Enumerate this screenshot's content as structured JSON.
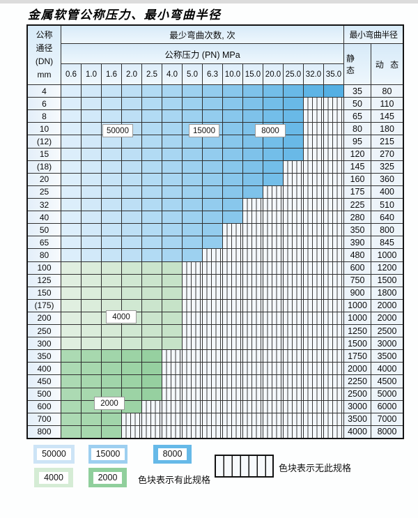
{
  "title": "金属软管公称压力、最小弯曲半径",
  "table": {
    "header": {
      "dn_lines": [
        "公称",
        "通径",
        "(DN)",
        "mm"
      ],
      "cycles_label": "最少弯曲次数, 次",
      "pressure_label": "公称压力 (PN) MPa",
      "radius_label": "最小弯曲半径",
      "static_label": "静 态",
      "dynamic_label": "动 态",
      "pressures": [
        "0.6",
        "1.0",
        "1.6",
        "2.0",
        "2.5",
        "4.0",
        "5.0",
        "6.3",
        "10.0",
        "15.0",
        "20.0",
        "25.0",
        "32.0",
        "35.0"
      ]
    },
    "rows": [
      {
        "dn": "4",
        "zone": "blue",
        "colored": 14,
        "colored_through_pn": "35.0",
        "static": "35",
        "dynamic": "80"
      },
      {
        "dn": "6",
        "zone": "blue",
        "colored": 12,
        "colored_through_pn": "25.0",
        "static": "50",
        "dynamic": "110"
      },
      {
        "dn": "8",
        "zone": "blue",
        "colored": 12,
        "colored_through_pn": "25.0",
        "static": "65",
        "dynamic": "145"
      },
      {
        "dn": "10",
        "zone": "blue",
        "colored": 12,
        "colored_through_pn": "25.0",
        "static": "80",
        "dynamic": "180"
      },
      {
        "dn": "(12)",
        "zone": "blue",
        "colored": 12,
        "colored_through_pn": "25.0",
        "static": "95",
        "dynamic": "215"
      },
      {
        "dn": "15",
        "zone": "blue",
        "colored": 12,
        "colored_through_pn": "25.0",
        "static": "120",
        "dynamic": "270"
      },
      {
        "dn": "(18)",
        "zone": "blue",
        "colored": 11,
        "colored_through_pn": "20.0",
        "static": "145",
        "dynamic": "325"
      },
      {
        "dn": "20",
        "zone": "blue",
        "colored": 11,
        "colored_through_pn": "20.0",
        "static": "160",
        "dynamic": "360"
      },
      {
        "dn": "25",
        "zone": "blue",
        "colored": 10,
        "colored_through_pn": "15.0",
        "static": "175",
        "dynamic": "400"
      },
      {
        "dn": "32",
        "zone": "blue",
        "colored": 9,
        "colored_through_pn": "10.0",
        "static": "225",
        "dynamic": "510"
      },
      {
        "dn": "40",
        "zone": "blue",
        "colored": 9,
        "colored_through_pn": "10.0",
        "static": "280",
        "dynamic": "640"
      },
      {
        "dn": "50",
        "zone": "blue",
        "colored": 8,
        "colored_through_pn": "6.3",
        "static": "350",
        "dynamic": "800"
      },
      {
        "dn": "65",
        "zone": "blue",
        "colored": 8,
        "colored_through_pn": "6.3",
        "static": "390",
        "dynamic": "845"
      },
      {
        "dn": "80",
        "zone": "blue",
        "colored": 7,
        "colored_through_pn": "5.0",
        "static": "480",
        "dynamic": "1000"
      },
      {
        "dn": "100",
        "zone": "green-4000",
        "colored": 6,
        "colored_through_pn": "4.0",
        "static": "600",
        "dynamic": "1200"
      },
      {
        "dn": "125",
        "zone": "green-4000",
        "colored": 6,
        "colored_through_pn": "4.0",
        "static": "750",
        "dynamic": "1500"
      },
      {
        "dn": "150",
        "zone": "green-4000",
        "colored": 6,
        "colored_through_pn": "4.0",
        "static": "900",
        "dynamic": "1800"
      },
      {
        "dn": "(175)",
        "zone": "green-4000",
        "colored": 6,
        "colored_through_pn": "4.0",
        "static": "1000",
        "dynamic": "2000"
      },
      {
        "dn": "200",
        "zone": "green-4000",
        "colored": 6,
        "colored_through_pn": "4.0",
        "static": "1000",
        "dynamic": "2000"
      },
      {
        "dn": "250",
        "zone": "green-4000",
        "colored": 6,
        "colored_through_pn": "4.0",
        "static": "1250",
        "dynamic": "2500"
      },
      {
        "dn": "300",
        "zone": "green-4000",
        "colored": 6,
        "colored_through_pn": "4.0",
        "static": "1500",
        "dynamic": "3000"
      },
      {
        "dn": "350",
        "zone": "green-2000",
        "colored": 5,
        "colored_through_pn": "2.5",
        "static": "1750",
        "dynamic": "3500"
      },
      {
        "dn": "400",
        "zone": "green-2000",
        "colored": 5,
        "colored_through_pn": "2.5",
        "static": "2000",
        "dynamic": "4000"
      },
      {
        "dn": "450",
        "zone": "green-2000",
        "colored": 5,
        "colored_through_pn": "2.5",
        "static": "2250",
        "dynamic": "4500"
      },
      {
        "dn": "500",
        "zone": "green-2000",
        "colored": 5,
        "colored_through_pn": "2.5",
        "static": "2500",
        "dynamic": "5000"
      },
      {
        "dn": "600",
        "zone": "green-2000",
        "colored": 4,
        "colored_through_pn": "2.0",
        "static": "3000",
        "dynamic": "6000"
      },
      {
        "dn": "700",
        "zone": "green-2000",
        "colored": 3,
        "colored_through_pn": "1.6",
        "static": "3500",
        "dynamic": "7000"
      },
      {
        "dn": "800",
        "zone": "green-2000",
        "colored": 3,
        "colored_through_pn": "1.6",
        "static": "4000",
        "dynamic": "8000"
      }
    ]
  },
  "legend": {
    "items": [
      {
        "label": "50000",
        "color": "#cde4f6"
      },
      {
        "label": "15000",
        "color": "#9dcff0"
      },
      {
        "label": "8000",
        "color": "#66b9e8"
      },
      {
        "label": "4000",
        "color": "#d5ecd5"
      },
      {
        "label": "2000",
        "color": "#90cf9c"
      }
    ],
    "has_spec_text": "色块表示有此规格",
    "no_spec_text": "色块表示无此规格"
  },
  "colors": {
    "blue_start": "#dceefb",
    "blue_end": "#54afe3",
    "green_4000_start": "#e0efe0",
    "green_4000_end": "#c6e3c8",
    "green_2000_start": "#acdab3",
    "green_2000_end": "#96d0a0",
    "hatch_bg": "#f4f8fc",
    "grid_line": "#2f2f2f"
  }
}
